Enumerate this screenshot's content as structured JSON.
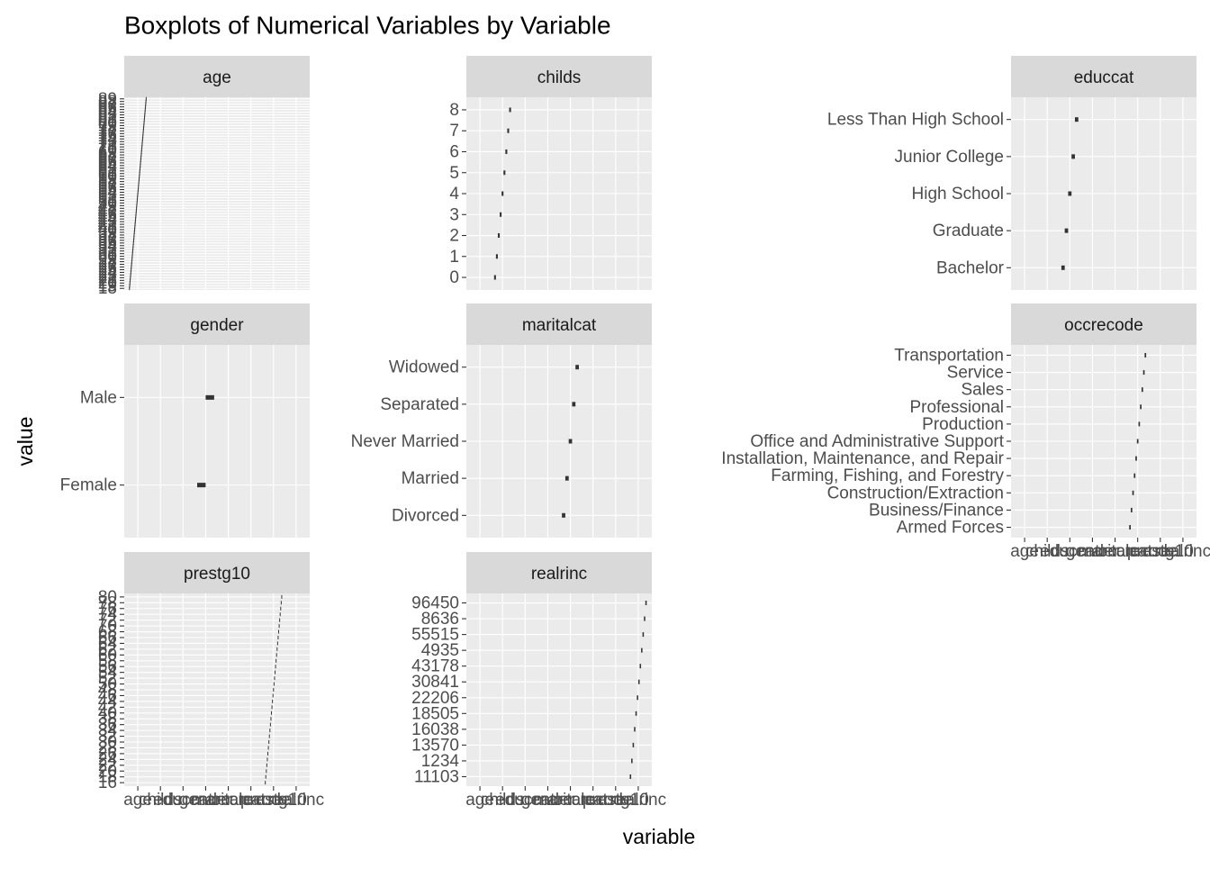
{
  "chart_data": {
    "type": "boxplot",
    "title": "Boxplots of Numerical Variables by Variable",
    "x_label": "variable",
    "y_label": "value",
    "x_categories": [
      "age",
      "childs",
      "educcat",
      "gender",
      "maritalcat",
      "occrecode",
      "prestg10",
      "realrinc"
    ],
    "panels": [
      {
        "title": "age",
        "y_categories": [
          "18",
          "19",
          "20",
          "21",
          "22",
          "23",
          "24",
          "25",
          "26",
          "27",
          "28",
          "29",
          "30",
          "31",
          "32",
          "33",
          "34",
          "35",
          "36",
          "37",
          "38",
          "39",
          "40",
          "41",
          "42",
          "43",
          "44",
          "45",
          "46",
          "47",
          "48",
          "49",
          "50",
          "51",
          "52",
          "53",
          "54",
          "55",
          "56",
          "57",
          "58",
          "59",
          "60",
          "61",
          "62",
          "63",
          "64",
          "65",
          "66",
          "67",
          "68",
          "69",
          "70",
          "71",
          "72",
          "73",
          "74",
          "75",
          "76",
          "77",
          "78",
          "79",
          "80",
          "81",
          "82",
          "83",
          "84",
          "85",
          "86",
          "87",
          "88",
          "89"
        ]
      },
      {
        "title": "childs",
        "y_categories": [
          "0",
          "1",
          "2",
          "3",
          "4",
          "5",
          "6",
          "7",
          "8"
        ]
      },
      {
        "title": "educcat",
        "y_categories": [
          "Bachelor",
          "Graduate",
          "High School",
          "Junior College",
          "Less Than High School"
        ]
      },
      {
        "title": "gender",
        "y_categories": [
          "Female",
          "Male"
        ]
      },
      {
        "title": "maritalcat",
        "y_categories": [
          "Divorced",
          "Married",
          "Never Married",
          "Separated",
          "Widowed"
        ]
      },
      {
        "title": "occrecode",
        "y_categories": [
          "Armed Forces",
          "Business/Finance",
          "Construction/Extraction",
          "Farming, Fishing, and Forestry",
          "Installation, Maintenance, and Repair",
          "Office and Administrative Support",
          "Production",
          "Professional",
          "Sales",
          "Service",
          "Transportation"
        ]
      },
      {
        "title": "prestg10",
        "y_categories": [
          "16",
          "18",
          "20",
          "22",
          "24",
          "26",
          "28",
          "30",
          "32",
          "34",
          "36",
          "38",
          "40",
          "42",
          "44",
          "46",
          "48",
          "50",
          "52",
          "54",
          "56",
          "58",
          "60",
          "62",
          "64",
          "66",
          "68",
          "70",
          "72",
          "74",
          "76",
          "78",
          "80"
        ]
      },
      {
        "title": "realrinc",
        "y_categories": [
          "11103",
          "1234",
          "13570",
          "16038",
          "18505",
          "22206",
          "30841",
          "43178",
          "4935",
          "55515",
          "8636",
          "96450"
        ]
      }
    ]
  }
}
